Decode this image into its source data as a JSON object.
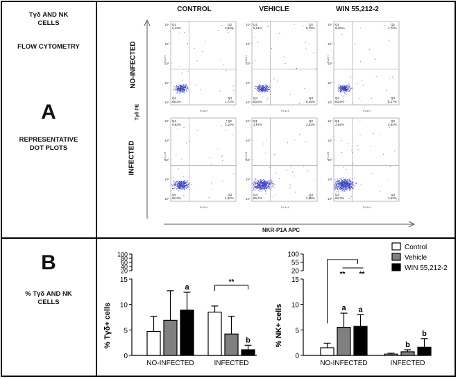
{
  "panel_a": {
    "title_line1": "Tγδ AND NK",
    "title_line2": "CELLS",
    "title_line3": "FLOW CYTOMETRY",
    "letter": "A",
    "sub_line1": "REPRESENTATIVE",
    "sub_line2": "DOT PLOTS",
    "columns": [
      "CONTROL",
      "VEHICLE",
      "WIN 55,212-2"
    ],
    "rows": [
      "NO-INFECTED",
      "INFECTED"
    ],
    "y_axis_label": "Tγδ PE",
    "x_axis_label": "NKR-P1A  APC",
    "plot_y_label": "FL2-H",
    "plot_x_label": "FL4-H",
    "tick_labels": [
      "10⁰",
      "10¹",
      "10²",
      "10³",
      "10⁴"
    ],
    "quadrant_names": [
      "Q1",
      "Q2",
      "Q3",
      "Q4"
    ],
    "plots": [
      {
        "q1": "6,13%",
        "q2": "3,92%",
        "q3": "1,72%",
        "q4": "88,2%",
        "density": 1
      },
      {
        "q1": "5,21%",
        "q2": "5,75%",
        "q3": "5,45%",
        "q4": "83,6%",
        "density": 1
      },
      {
        "q1": "9,20%",
        "q2": "1,72%",
        "q3": "5,17%",
        "q4": "83,9%",
        "density": 1
      },
      {
        "q1": "9,93%",
        "q2": "3,15%",
        "q3": "4,62%",
        "q4": "82,3%",
        "density": 2
      },
      {
        "q1": "3,97%",
        "q2": "2,63%",
        "q3": "2,55%",
        "q4": "90,7%",
        "density": 3
      },
      {
        "q1": "2,54%",
        "q2": "2,54%",
        "q3": "2,62%",
        "q4": "92,3%",
        "density": 4
      }
    ]
  },
  "panel_b": {
    "letter": "B",
    "label_line1": "% Tγδ  AND NK",
    "label_line2": "CELLS"
  },
  "colors": {
    "control": "#ffffff",
    "vehicle": "#808080",
    "win": "#000000",
    "dots": "#3b45c8"
  },
  "chart_data": [
    {
      "type": "bar",
      "ylabel": "% Tγδ+ cells",
      "categories": [
        "NO-INFECTED",
        "INFECTED"
      ],
      "ylim": [
        0,
        15
      ],
      "yticks_lower": [
        "0",
        "5",
        "10",
        "15"
      ],
      "yticks_upper": [
        "20",
        "40",
        "60",
        "80",
        "100"
      ],
      "series": [
        {
          "name": "Control",
          "values": [
            4.7,
            8.5
          ],
          "errors": [
            3.0,
            1.2
          ]
        },
        {
          "name": "Vehicle",
          "values": [
            6.9,
            4.2
          ],
          "errors": [
            5.8,
            3.5
          ]
        },
        {
          "name": "WIN 55,212-2",
          "values": [
            8.9,
            1.1
          ],
          "errors": [
            3.5,
            0.9
          ]
        }
      ],
      "bar_labels": [
        [
          null,
          null
        ],
        [
          null,
          null
        ],
        [
          "a",
          "b"
        ]
      ],
      "bracket": {
        "group": 1,
        "label": "**"
      }
    },
    {
      "type": "bar",
      "ylabel": "% NK+ cells",
      "categories": [
        "NO-INFECTED",
        "INFECTED"
      ],
      "ylim": [
        0,
        15
      ],
      "yticks_lower": [
        "0",
        "5",
        "10",
        "15"
      ],
      "yticks_upper": [
        "20",
        "55",
        "100"
      ],
      "series": [
        {
          "name": "Control",
          "values": [
            1.5,
            0.25
          ],
          "errors": [
            0.9,
            0.2
          ]
        },
        {
          "name": "Vehicle",
          "values": [
            5.5,
            0.7
          ],
          "errors": [
            2.8,
            0.4
          ]
        },
        {
          "name": "WIN 55,212-2",
          "values": [
            5.7,
            1.6
          ],
          "errors": [
            2.3,
            1.7
          ]
        }
      ],
      "bar_labels": [
        [
          null,
          null
        ],
        [
          "a",
          "b"
        ],
        [
          "a",
          "b"
        ]
      ],
      "bracket": {
        "group": 0,
        "labels": [
          "**",
          "**"
        ]
      },
      "legend": [
        "Control",
        "Vehicle",
        "WIN 55,212-2"
      ]
    }
  ]
}
